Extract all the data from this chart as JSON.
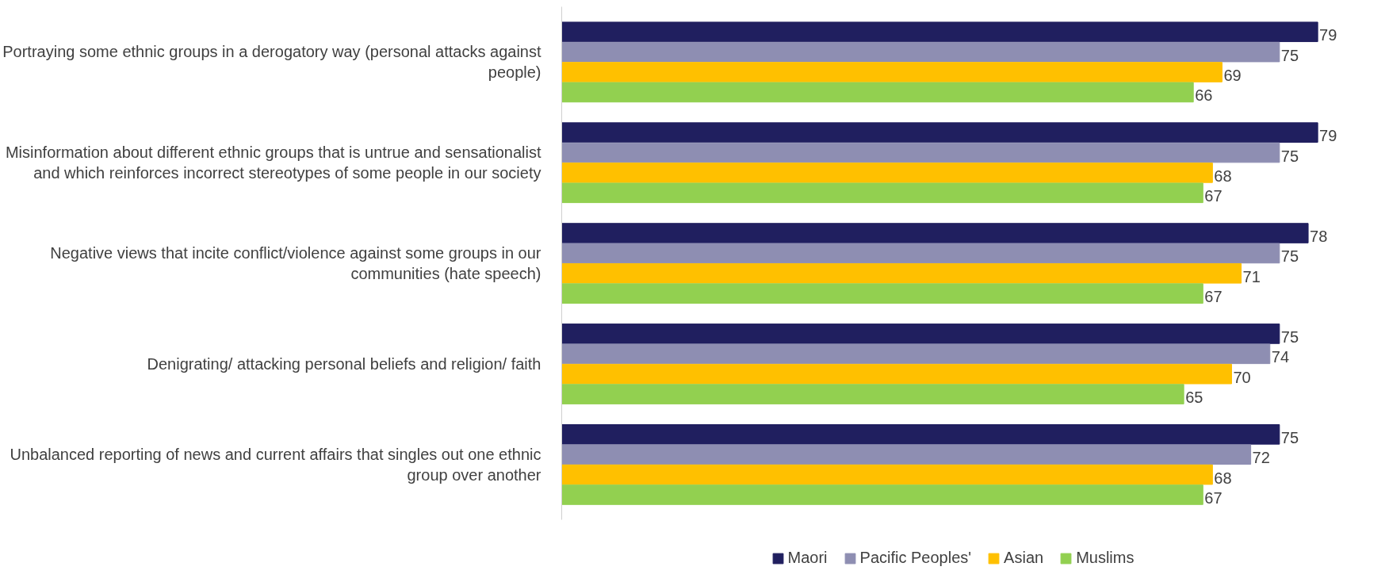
{
  "chart_data": {
    "type": "bar",
    "orientation": "horizontal",
    "categories": [
      "Portraying some ethnic groups in a derogatory way (personal attacks against people)",
      "Misinformation about different ethnic groups that is untrue and sensationalist and which reinforces incorrect stereotypes of some people in our society",
      "Negative views that incite conflict/violence against some groups in our communities (hate speech)",
      "Denigrating/ attacking personal beliefs and religion/ faith",
      "Unbalanced reporting of news and current affairs that singles out one ethnic group over another"
    ],
    "series": [
      {
        "name": "Maori",
        "color": "#201f5f",
        "values": [
          79,
          79,
          78,
          75,
          75
        ]
      },
      {
        "name": "Pacific Peoples'",
        "color": "#8e8eb2",
        "values": [
          75,
          75,
          75,
          74,
          72
        ]
      },
      {
        "name": "Asian",
        "color": "#ffc000",
        "values": [
          69,
          68,
          71,
          70,
          68
        ]
      },
      {
        "name": "Muslims",
        "color": "#92d050",
        "values": [
          66,
          67,
          67,
          65,
          67
        ]
      }
    ],
    "data_labels": true,
    "legend": "bottom",
    "tick_labels": "y"
  }
}
